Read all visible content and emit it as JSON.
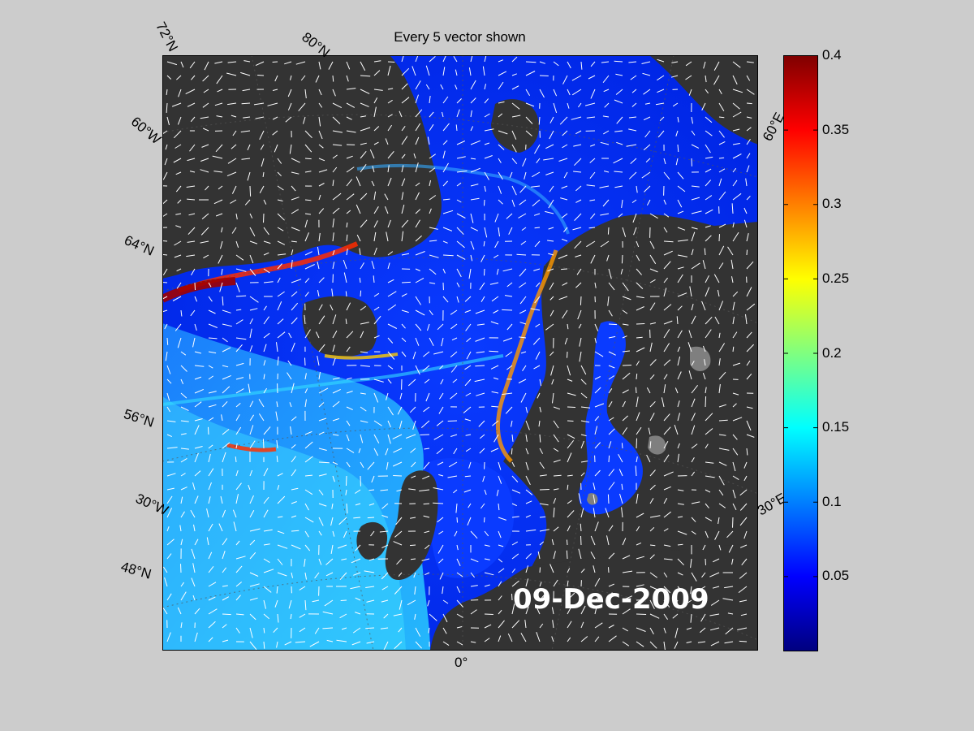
{
  "figure": {
    "title": "Every 5 vector shown",
    "date": "09-Dec-2009",
    "lat_labels": [
      "72°N",
      "60°N",
      "64°N",
      "56°N",
      "48°N"
    ],
    "lon_labels": [
      "60°W",
      "30°W",
      "0°",
      "30°E",
      "60°E"
    ],
    "colors": {
      "background": "#cccccc",
      "land": "#333333",
      "sea_ice_land": "#7f7f7f",
      "vectors": "#ffffff"
    }
  },
  "colorbar": {
    "colormap": "jet",
    "min": 0,
    "max": 0.4,
    "ticks": [
      "0.4",
      "0.35",
      "0.3",
      "0.25",
      "0.2",
      "0.15",
      "0.1",
      "0.05"
    ],
    "tick_values": [
      0.4,
      0.35,
      0.3,
      0.25,
      0.2,
      0.15,
      0.1,
      0.05
    ]
  }
}
